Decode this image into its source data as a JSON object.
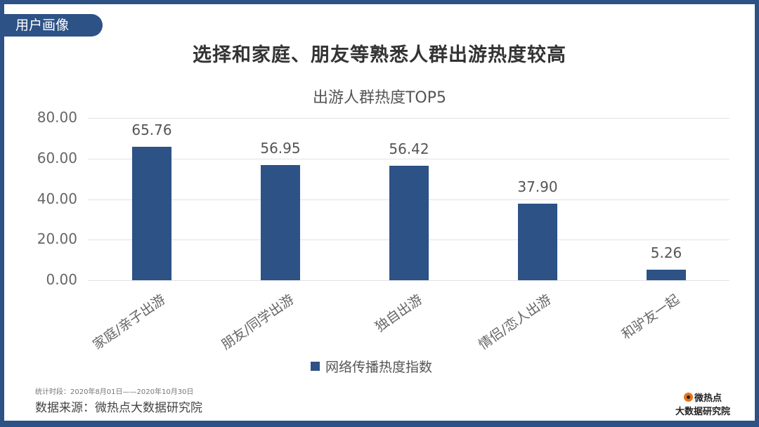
{
  "tag": {
    "label": "用户画像"
  },
  "headline": "选择和家庭、朋友等熟悉人群出游热度较高",
  "chart_data": {
    "type": "bar",
    "title": "出游人群热度TOP5",
    "categories": [
      "家庭/亲子出游",
      "朋友/同学出游",
      "独自出游",
      "情侣/恋人出游",
      "和驴友一起"
    ],
    "series": [
      {
        "name": "网络传播热度指数",
        "values": [
          65.76,
          56.95,
          56.42,
          37.9,
          5.26
        ],
        "color": "#2c5286"
      }
    ],
    "value_labels": [
      "65.76",
      "56.95",
      "56.42",
      "37.90",
      "5.26"
    ],
    "yticks": [
      "0.00",
      "20.00",
      "40.00",
      "60.00",
      "80.00"
    ],
    "ylim": [
      0,
      80
    ],
    "xlabel": "",
    "ylabel": "",
    "grid": true,
    "legend_position": "bottom"
  },
  "footer": {
    "period": "统计时段：2020年8月01日——2020年10月30日",
    "source": "数据来源：微热点大数据研究院",
    "logo_line1": "微热点",
    "logo_line2": "大数据研究院"
  },
  "colors": {
    "accent": "#2c5286"
  }
}
